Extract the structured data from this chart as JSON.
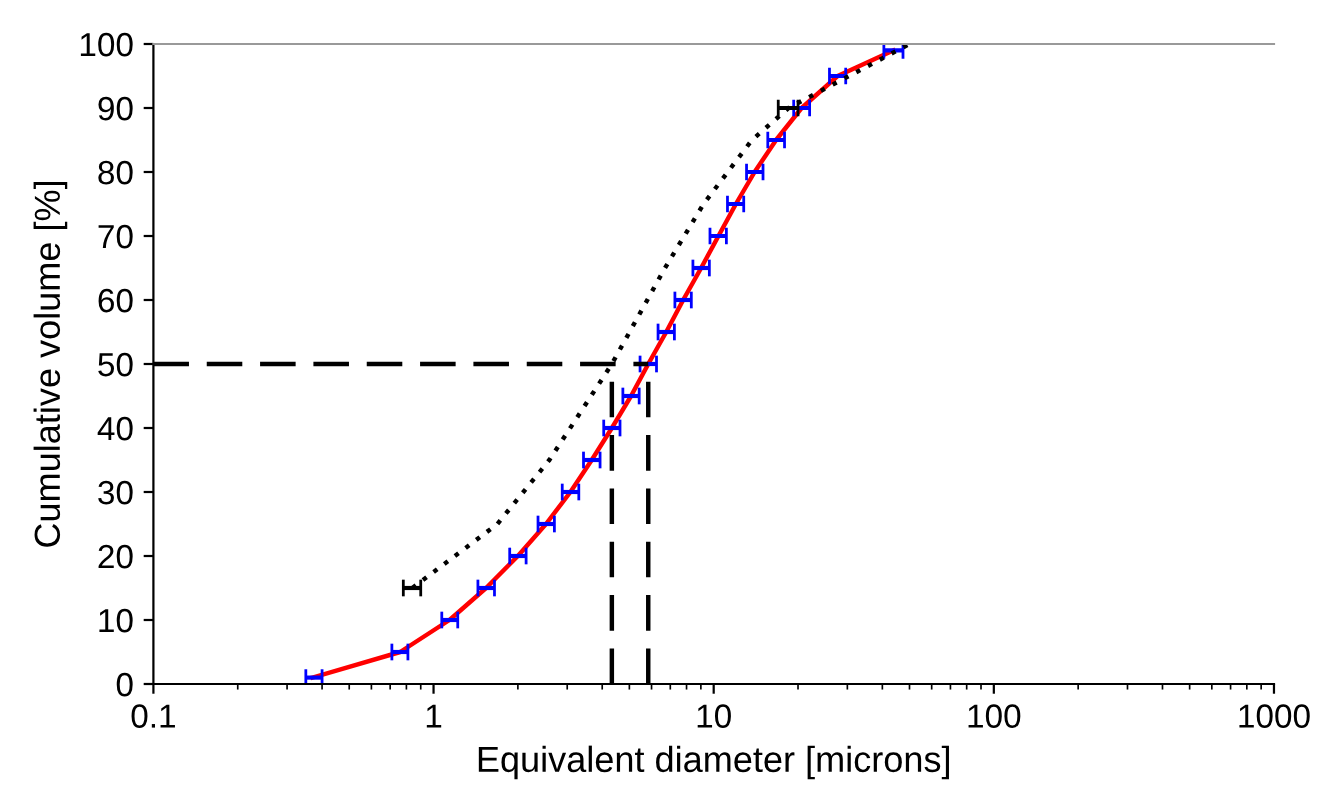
{
  "chart_data": {
    "type": "line",
    "xlabel": "Equivalent diameter [microns]",
    "ylabel": "Cumulative volume [%]",
    "log": "x",
    "xlim": [
      0.1,
      1000
    ],
    "xticks": [
      0.1,
      1,
      10,
      100,
      1000
    ],
    "ylim": [
      0,
      100
    ],
    "yticks": [
      0,
      10,
      20,
      30,
      40,
      50,
      60,
      70,
      80,
      90,
      100
    ],
    "grid": false,
    "legend": false,
    "series": [
      {
        "color": "#ff0000",
        "marker": "none",
        "line_style": "solid",
        "x": [
          0.37,
          0.76,
          1.14,
          1.54,
          2.0,
          2.52,
          3.08,
          3.67,
          4.33,
          5.07,
          5.84,
          6.77,
          7.78,
          9.02,
          10.4,
          12.0,
          14.0,
          16.7,
          20.6,
          27.7,
          43.8
        ],
        "values": [
          1,
          5,
          10,
          15,
          20,
          25,
          30,
          35,
          40,
          45,
          50,
          55,
          60,
          65,
          70,
          75,
          80,
          85,
          90,
          95,
          99
        ],
        "xerrors": [
          [
            0.35,
            0.4
          ],
          [
            0.71,
            0.81
          ],
          [
            1.07,
            1.22
          ],
          [
            1.44,
            1.65
          ],
          [
            1.87,
            2.14
          ],
          [
            2.36,
            2.7
          ],
          [
            2.88,
            3.3
          ],
          [
            3.43,
            3.93
          ],
          [
            4.05,
            4.63
          ],
          [
            4.74,
            5.42
          ],
          [
            5.46,
            6.25
          ],
          [
            6.33,
            7.24
          ],
          [
            7.27,
            8.32
          ],
          [
            8.43,
            9.65
          ],
          [
            9.7,
            11.1
          ],
          [
            11.2,
            12.8
          ],
          [
            13.1,
            15.0
          ],
          [
            15.6,
            17.9
          ],
          [
            19.3,
            22.0
          ],
          [
            25.9,
            29.6
          ],
          [
            40.5,
            47.4
          ]
        ],
        "colors": [
          "#0000ff",
          "#0000ff",
          "#0000ff",
          "#0000ff",
          "#0000ff",
          "#0000ff",
          "#0000ff",
          "#0000ff",
          "#0000ff",
          "#0000ff",
          "#0000ff",
          "#0000ff",
          "#0000ff",
          "#0000ff",
          "#0000ff",
          "#0000ff",
          "#0000ff",
          "#0000ff",
          "#0000ff",
          "#0000ff",
          "#0000ff"
        ]
      },
      {
        "color": "#000000",
        "marker": "none",
        "line_style": "dotted",
        "x": [
          0.84,
          1.69,
          2.59,
          3.65,
          4.33,
          5.01,
          6.7,
          9.2,
          13.7,
          18.5,
          50
        ],
        "values": [
          15,
          25,
          35,
          45,
          50,
          55,
          65,
          75,
          85,
          90,
          100
        ],
        "xerrors": [
          [
            0.78,
            0.9
          ],
          null,
          null,
          null,
          null,
          null,
          null,
          null,
          null,
          [
            17.0,
            20.0
          ],
          null
        ]
      },
      {
        "color": "#000000",
        "marker": "none",
        "line_style": "dashed",
        "x": [
          0.1,
          5.84
        ],
        "values": [
          50,
          50
        ]
      },
      {
        "color": "#000000",
        "marker": "none",
        "line_style": "dashed",
        "x": [
          4.33,
          4.33
        ],
        "values": [
          0,
          50
        ]
      },
      {
        "color": "#000000",
        "marker": "none",
        "line_style": "dashed",
        "x": [
          5.84,
          5.84
        ],
        "values": [
          0,
          50
        ]
      }
    ]
  }
}
